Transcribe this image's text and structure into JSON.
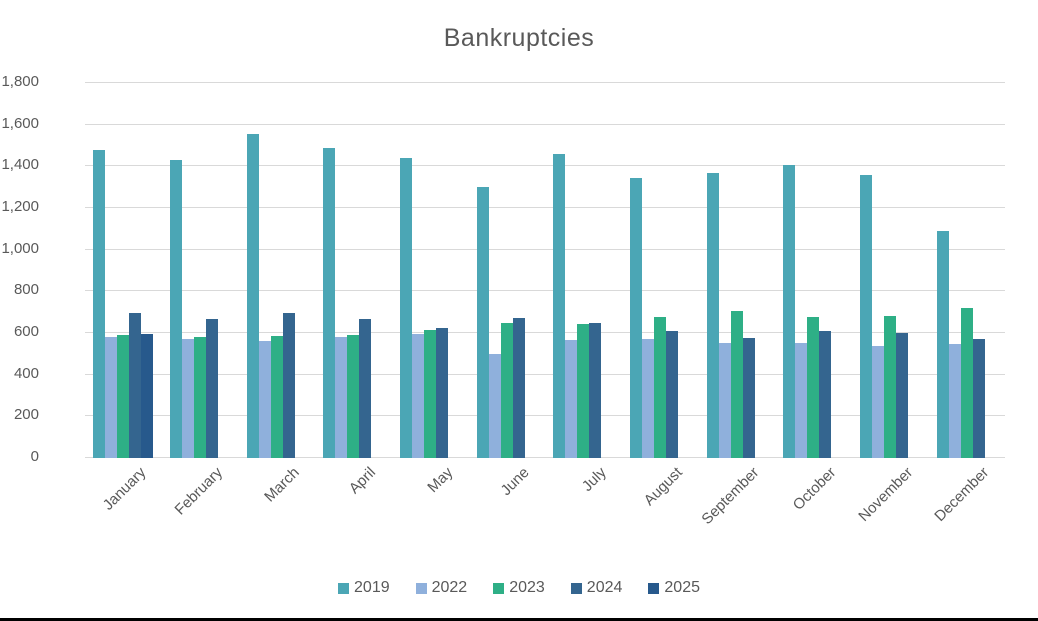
{
  "title": "Bankruptcies",
  "style": {
    "background": "#ffffff",
    "text_color": "#595959",
    "gridline_color": "#d9d9d9",
    "bottom_edge_color": "#000000"
  },
  "chart_data": {
    "type": "bar",
    "title": "Bankruptcies",
    "xlabel": "",
    "ylabel": "",
    "ylim": [
      0,
      1800
    ],
    "ytick_step": 200,
    "ytick_labels": [
      "0",
      "200",
      "400",
      "600",
      "800",
      "1,000",
      "1,200",
      "1,400",
      "1,600",
      "1,800"
    ],
    "grid": true,
    "legend_position": "bottom",
    "categories": [
      "January",
      "February",
      "March",
      "April",
      "May",
      "June",
      "July",
      "August",
      "September",
      "October",
      "November",
      "December"
    ],
    "series": [
      {
        "name": "2019",
        "color": "#4BA6B5",
        "values": [
          1480,
          1430,
          1555,
          1490,
          1440,
          1300,
          1460,
          1345,
          1370,
          1405,
          1360,
          1090
        ]
      },
      {
        "name": "2022",
        "color": "#8FB0DC",
        "values": [
          580,
          570,
          560,
          580,
          595,
          500,
          565,
          570,
          550,
          550,
          540,
          545
        ]
      },
      {
        "name": "2023",
        "color": "#2EAF86",
        "values": [
          590,
          580,
          585,
          590,
          615,
          650,
          645,
          675,
          705,
          675,
          680,
          720
        ]
      },
      {
        "name": "2024",
        "color": "#34658F",
        "values": [
          695,
          665,
          695,
          665,
          625,
          670,
          650,
          610,
          575,
          610,
          600,
          570
        ]
      },
      {
        "name": "2025",
        "color": "#27598C",
        "values": [
          595,
          null,
          null,
          null,
          null,
          null,
          null,
          null,
          null,
          null,
          null,
          null
        ]
      }
    ]
  }
}
